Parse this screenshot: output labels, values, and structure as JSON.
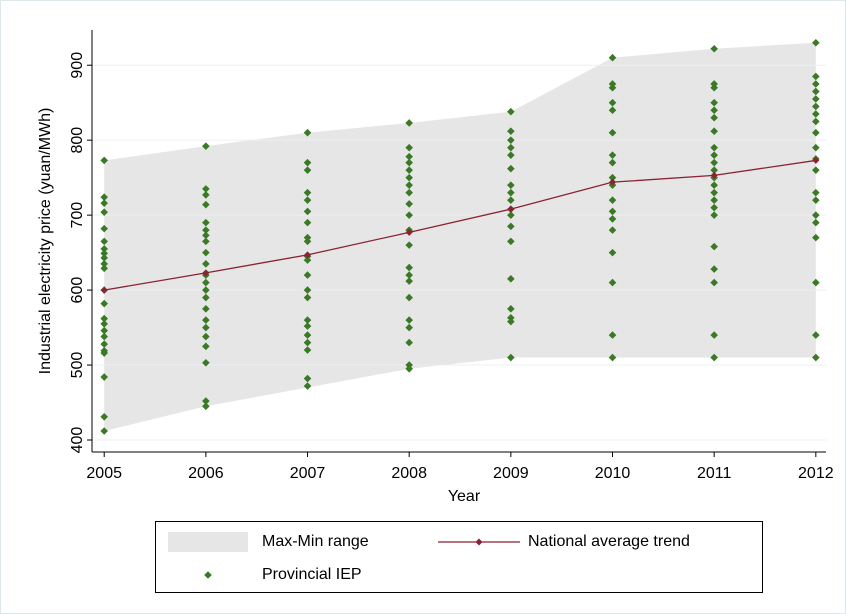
{
  "chart_data": {
    "type": "scatter",
    "y_label": "Industrial electricity price (yuan/MWh)",
    "x_label": "Year",
    "xlim": [
      2004.88,
      2012.1
    ],
    "ylim": [
      384,
      947
    ],
    "xticks": [
      2005,
      2006,
      2007,
      2008,
      2009,
      2010,
      2011,
      2012
    ],
    "yticks": [
      400,
      500,
      600,
      700,
      800,
      900
    ],
    "grid": true,
    "legend": "bottom",
    "series": [
      {
        "name": "Max-Min range",
        "type": "range",
        "color": "#e6e6e6",
        "x": [
          2005,
          2006,
          2007,
          2008,
          2009,
          2010,
          2011,
          2012
        ],
        "high": [
          773,
          792,
          810,
          823,
          838,
          910,
          922,
          930
        ],
        "low": [
          412,
          445,
          470,
          495,
          510,
          510,
          510,
          510
        ]
      },
      {
        "name": "National average trend",
        "type": "line",
        "color": "#8b2332",
        "x": [
          2005,
          2006,
          2007,
          2008,
          2009,
          2010,
          2011,
          2012
        ],
        "values": [
          600,
          623,
          647,
          677,
          708,
          744,
          753,
          773
        ]
      },
      {
        "name": "Provincial IEP",
        "type": "scatter",
        "color": "#3a7a26",
        "points": [
          {
            "x": 2005,
            "values": [
              773,
              724,
              716,
              704,
              682,
              665,
              655,
              649,
              643,
              635,
              629,
              600,
              582,
              562,
              555,
              546,
              538,
              528,
              519,
              516,
              484,
              431,
              412
            ]
          },
          {
            "x": 2006,
            "values": [
              792,
              735,
              727,
              714,
              690,
              680,
              673,
              665,
              650,
              635,
              620,
              610,
              600,
              590,
              575,
              560,
              550,
              538,
              525,
              503,
              452,
              445
            ]
          },
          {
            "x": 2007,
            "values": [
              810,
              770,
              760,
              730,
              720,
              705,
              690,
              670,
              665,
              645,
              640,
              620,
              600,
              590,
              560,
              552,
              540,
              530,
              520,
              482,
              472
            ]
          },
          {
            "x": 2008,
            "values": [
              823,
              790,
              778,
              770,
              760,
              750,
              740,
              730,
              715,
              700,
              680,
              660,
              630,
              620,
              612,
              590,
              560,
              550,
              530,
              500,
              495
            ]
          },
          {
            "x": 2009,
            "values": [
              838,
              812,
              800,
              790,
              780,
              762,
              740,
              730,
              720,
              708,
              700,
              685,
              665,
              615,
              575,
              563,
              558,
              510
            ]
          },
          {
            "x": 2010,
            "values": [
              910,
              875,
              870,
              850,
              840,
              810,
              780,
              770,
              750,
              740,
              720,
              705,
              695,
              680,
              650,
              610,
              540,
              510
            ]
          },
          {
            "x": 2011,
            "values": [
              922,
              875,
              870,
              850,
              840,
              830,
              812,
              790,
              780,
              770,
              760,
              750,
              740,
              730,
              720,
              710,
              700,
              658,
              628,
              610,
              540,
              510
            ]
          },
          {
            "x": 2012,
            "values": [
              930,
              885,
              875,
              865,
              855,
              845,
              835,
              825,
              810,
              790,
              775,
              760,
              730,
              720,
              700,
              690,
              670,
              610,
              540,
              510
            ]
          }
        ]
      }
    ]
  }
}
